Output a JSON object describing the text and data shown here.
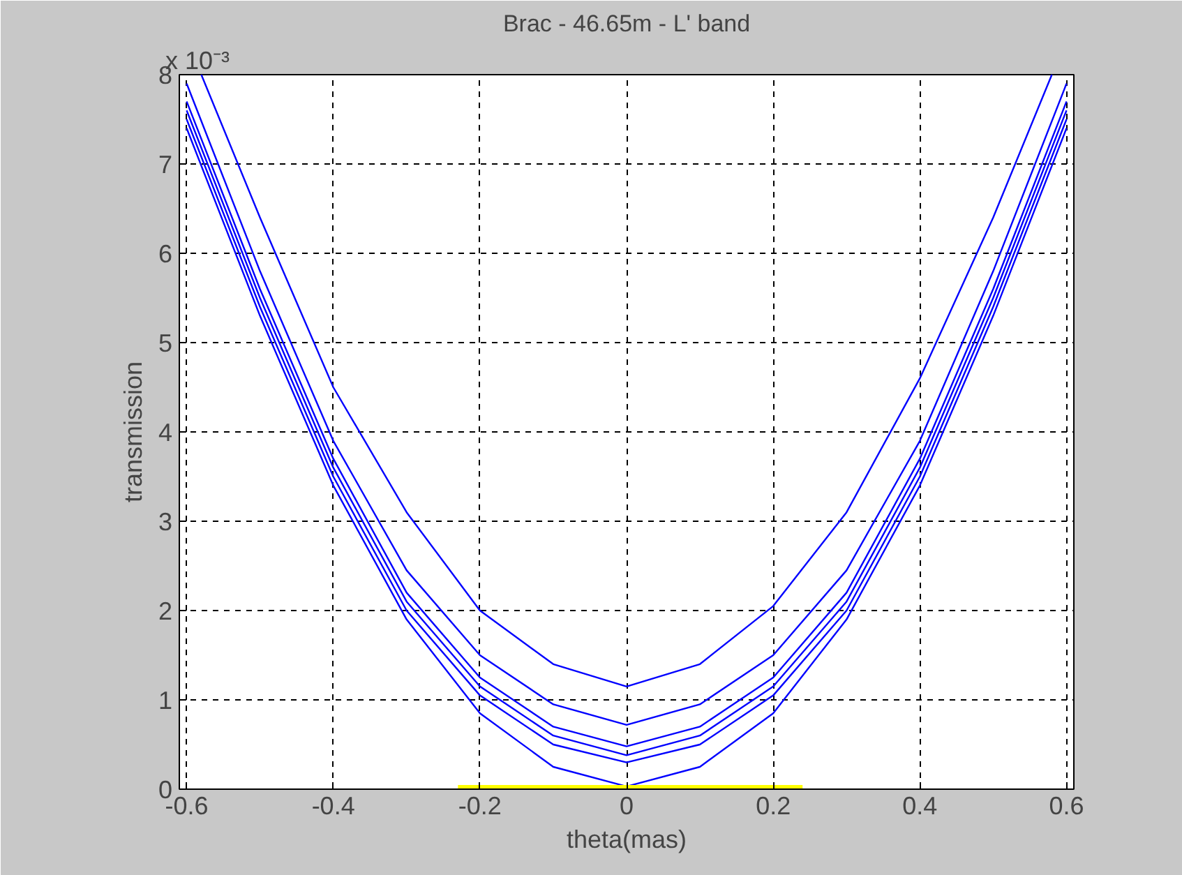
{
  "chart_data": {
    "type": "line",
    "title": "Brac - 46.65m - L' band",
    "xlabel": "theta(mas)",
    "ylabel": "transmission",
    "annotations": [
      "x 10⁻³"
    ],
    "xlim": [
      -0.61,
      0.61
    ],
    "ylim": [
      0,
      8
    ],
    "xticks": [
      -0.6,
      -0.4,
      -0.2,
      0,
      0.2,
      0.4,
      0.6
    ],
    "yticks": [
      0,
      1,
      2,
      3,
      4,
      5,
      6,
      7,
      8
    ],
    "grid": true,
    "line_style": "solid",
    "x": [
      -0.58,
      -0.5,
      -0.4,
      -0.3,
      -0.2,
      -0.1,
      0,
      0.1,
      0.2,
      0.3,
      0.4,
      0.5,
      0.58
    ],
    "series": [
      {
        "color": "#0000ff",
        "values": [
          8,
          6.4,
          4.5,
          3.1,
          2.0,
          1.4,
          1.15,
          1.4,
          2.05,
          3.1,
          4.6,
          6.4,
          8
        ]
      },
      {
        "color": "#0000ff",
        "x": [
          -0.6,
          -0.5,
          -0.4,
          -0.3,
          -0.2,
          -0.1,
          0,
          0.1,
          0.2,
          0.3,
          0.4,
          0.5,
          0.6
        ],
        "values": [
          7.9,
          5.8,
          3.9,
          2.45,
          1.5,
          0.95,
          0.72,
          0.95,
          1.5,
          2.45,
          3.9,
          5.8,
          7.9
        ]
      },
      {
        "color": "#0000ff",
        "x": [
          -0.6,
          -0.5,
          -0.4,
          -0.3,
          -0.2,
          -0.1,
          0,
          0.1,
          0.2,
          0.3,
          0.4,
          0.5,
          0.6
        ],
        "values": [
          7.7,
          5.6,
          3.7,
          2.2,
          1.25,
          0.7,
          0.48,
          0.7,
          1.25,
          2.2,
          3.7,
          5.6,
          7.7
        ]
      },
      {
        "color": "#0000ff",
        "x": [
          -0.6,
          -0.5,
          -0.4,
          -0.3,
          -0.2,
          -0.1,
          0,
          0.1,
          0.2,
          0.3,
          0.4,
          0.5,
          0.6
        ],
        "values": [
          7.6,
          5.5,
          3.6,
          2.1,
          1.15,
          0.6,
          0.38,
          0.6,
          1.15,
          2.1,
          3.6,
          5.5,
          7.6
        ]
      },
      {
        "color": "#0000ff",
        "x": [
          -0.6,
          -0.5,
          -0.4,
          -0.3,
          -0.2,
          -0.1,
          0,
          0.1,
          0.2,
          0.3,
          0.4,
          0.5,
          0.6
        ],
        "values": [
          7.5,
          5.4,
          3.5,
          2.0,
          1.05,
          0.5,
          0.3,
          0.5,
          1.05,
          2.0,
          3.5,
          5.4,
          7.5
        ]
      },
      {
        "color": "#0000ff",
        "x": [
          -0.6,
          -0.5,
          -0.4,
          -0.3,
          -0.2,
          -0.1,
          0,
          0.1,
          0.2,
          0.3,
          0.4,
          0.5,
          0.6
        ],
        "values": [
          7.4,
          5.3,
          3.4,
          1.9,
          0.85,
          0.25,
          0.03,
          0.25,
          0.85,
          1.9,
          3.4,
          5.3,
          7.4
        ]
      },
      {
        "color": "#ffff00",
        "x": [
          -0.23,
          0.24
        ],
        "values": [
          0,
          0
        ]
      }
    ]
  }
}
